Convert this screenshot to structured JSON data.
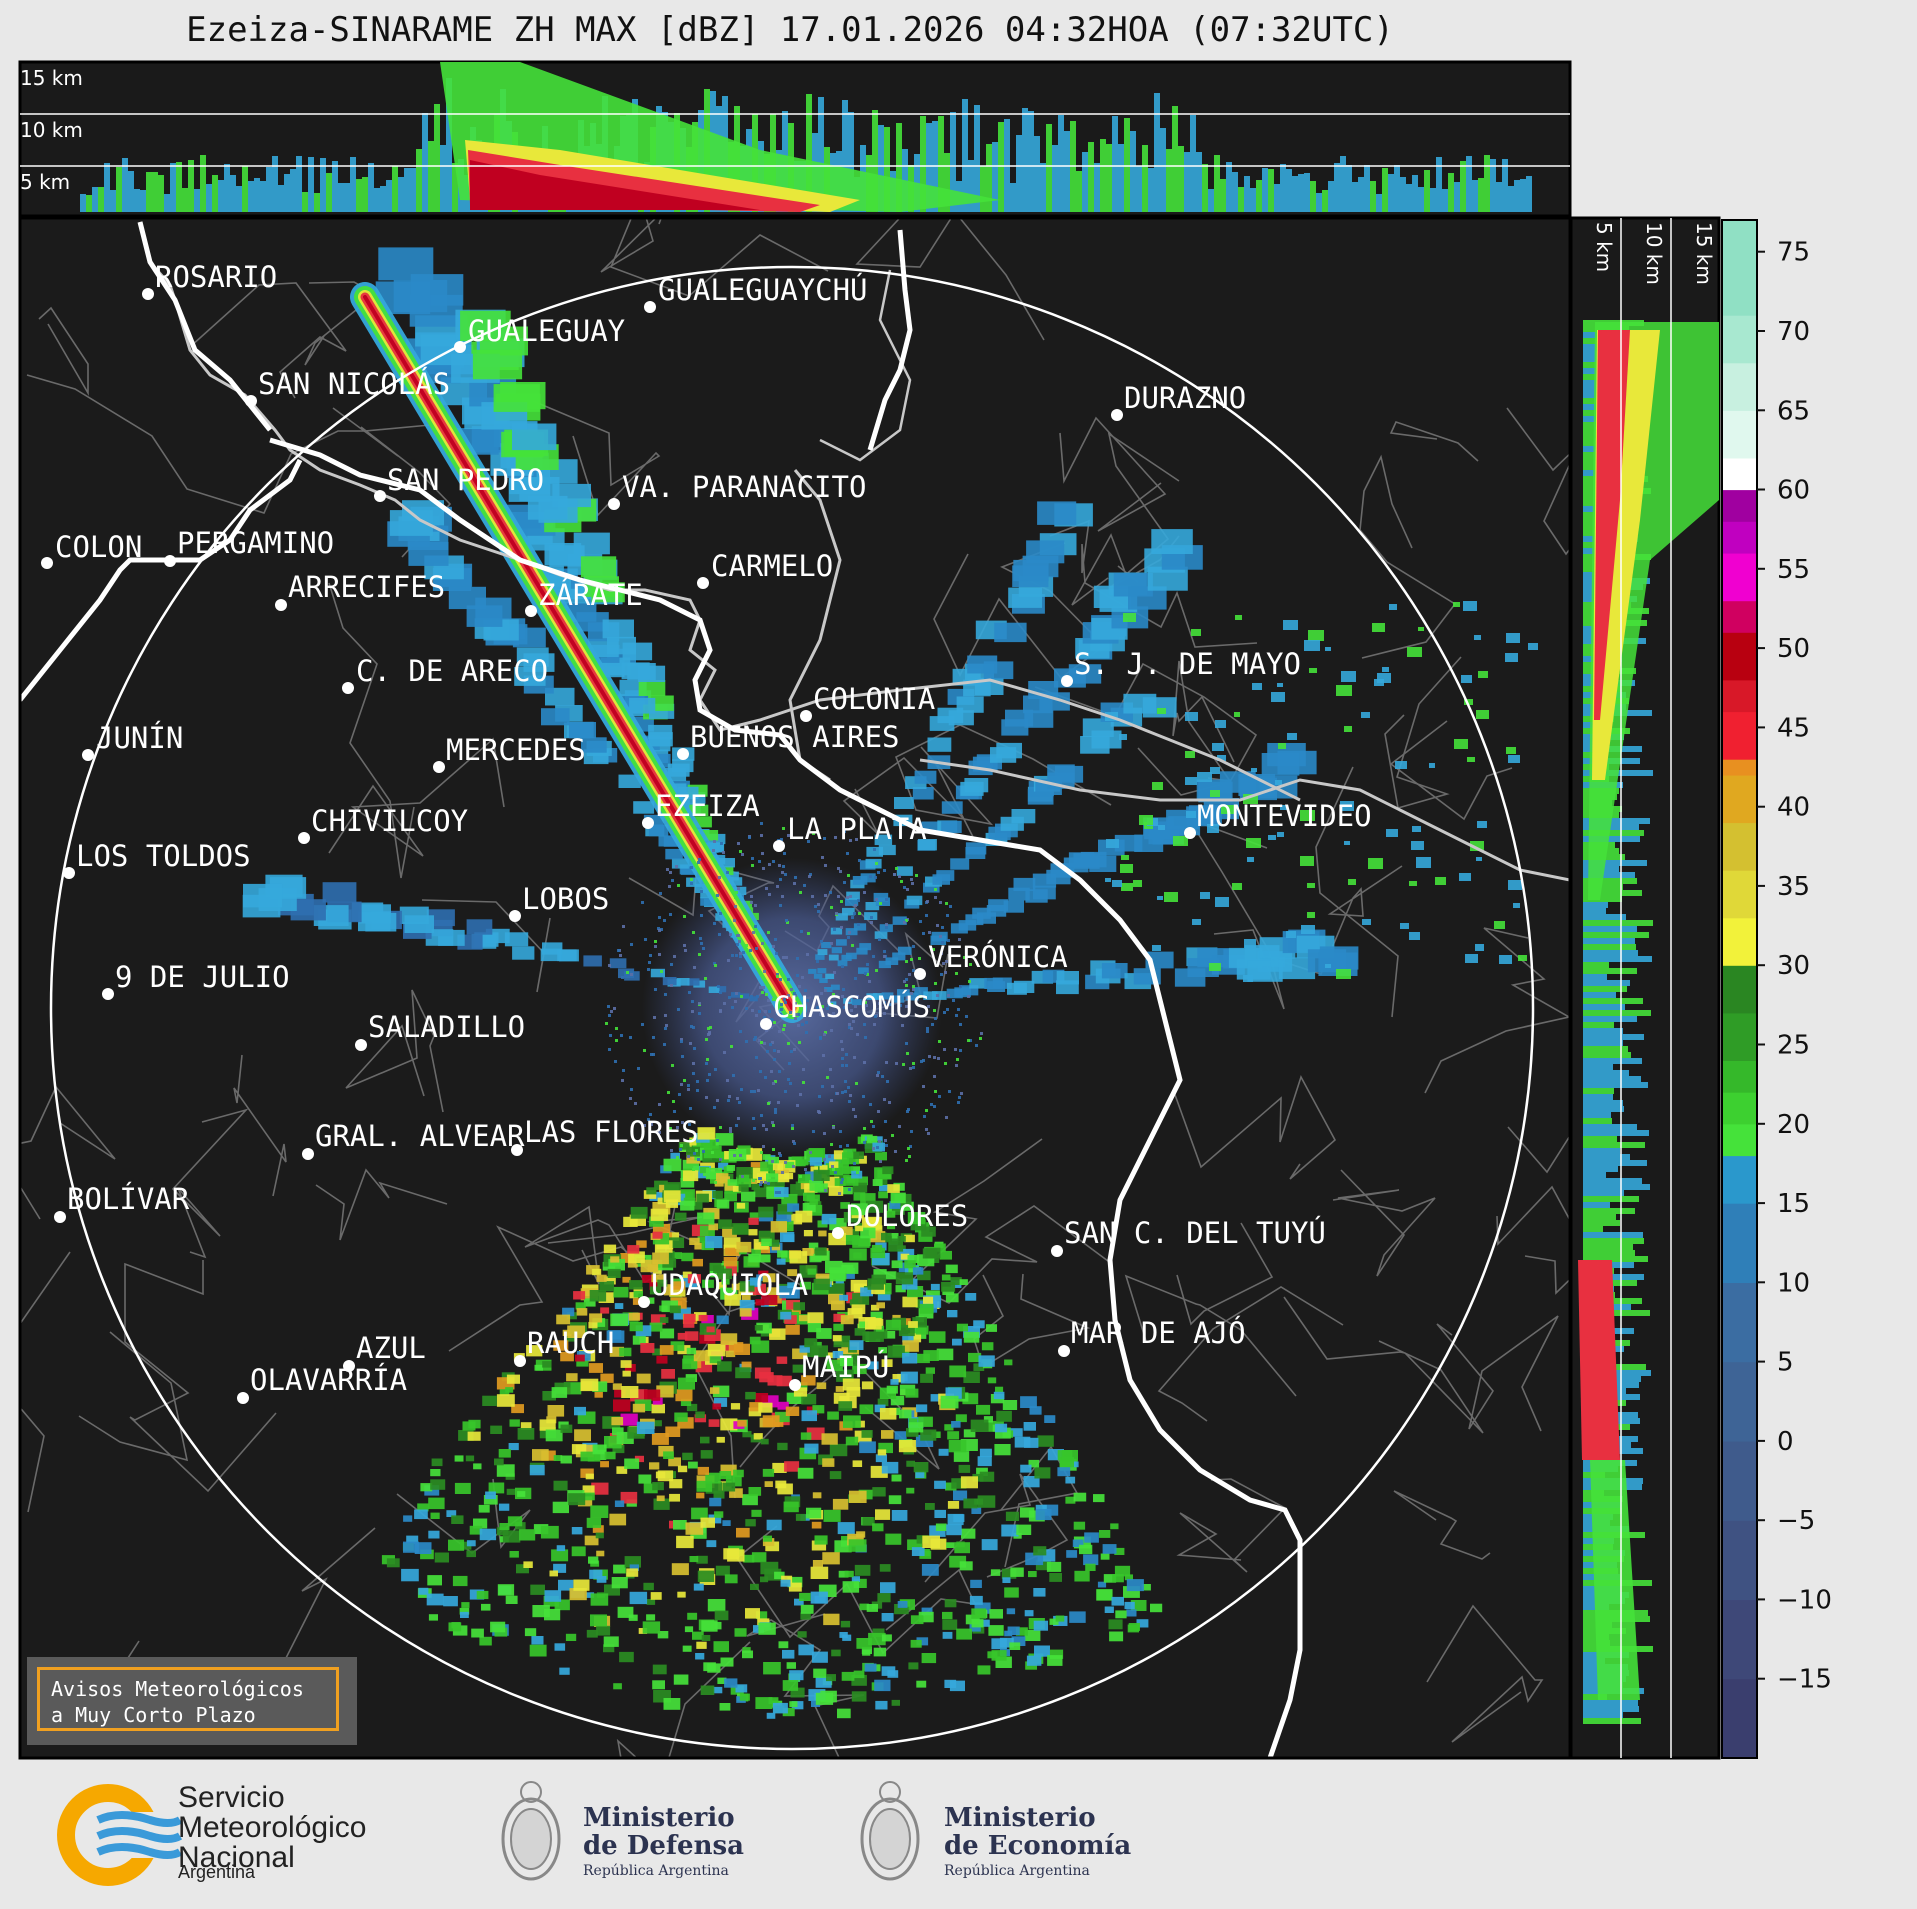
{
  "title": "Ezeiza-SINARAME ZH MAX [dBZ] 17.01.2026 04:32HOA (07:32UTC)",
  "top_panel": {
    "height_labels": [
      "15 km",
      "10 km",
      "5 km"
    ]
  },
  "side_panel": {
    "height_labels": [
      "5 km",
      "10 km",
      "15 km"
    ]
  },
  "colorbar": {
    "unit": "dBZ",
    "tick_labels": [
      "75",
      "70",
      "65",
      "60",
      "55",
      "50",
      "45",
      "40",
      "35",
      "30",
      "25",
      "20",
      "15",
      "10",
      "5",
      "0",
      "−5",
      "−10",
      "−15"
    ]
  },
  "cities": [
    {
      "name": "ROSARIO"
    },
    {
      "name": "GUALEGUAYCHÚ"
    },
    {
      "name": "GUALEGUAY"
    },
    {
      "name": "SAN NICOLÁS"
    },
    {
      "name": "DURAZNO"
    },
    {
      "name": "SAN PEDRO"
    },
    {
      "name": "VA. PARANACITO"
    },
    {
      "name": "COLON"
    },
    {
      "name": "PERGAMINO"
    },
    {
      "name": "CARMELO"
    },
    {
      "name": "ARRECIFES"
    },
    {
      "name": "ZÁRATE"
    },
    {
      "name": "S. J. DE MAYO"
    },
    {
      "name": "C. DE ARECO"
    },
    {
      "name": "COLONIA"
    },
    {
      "name": "JUNÍN"
    },
    {
      "name": "BUENOS AIRES"
    },
    {
      "name": "MERCEDES"
    },
    {
      "name": "MONTEVIDEO"
    },
    {
      "name": "EZEIZA"
    },
    {
      "name": "CHIVILCOY"
    },
    {
      "name": "LA PLATA"
    },
    {
      "name": "LOS TOLDOS"
    },
    {
      "name": "LOBOS"
    },
    {
      "name": "VERÓNICA"
    },
    {
      "name": "9 DE JULIO"
    },
    {
      "name": "CHASCOMÚS"
    },
    {
      "name": "SALADILLO"
    },
    {
      "name": "GRAL. ALVEAR"
    },
    {
      "name": "LAS FLORES"
    },
    {
      "name": "BOLÍVAR"
    },
    {
      "name": "DOLORES"
    },
    {
      "name": "SAN C. DEL TUYÚ"
    },
    {
      "name": "UDAQUIOLA"
    },
    {
      "name": "MAR DE AJÓ"
    },
    {
      "name": "AZUL"
    },
    {
      "name": "RAUCH"
    },
    {
      "name": "OLAVARRÍA"
    },
    {
      "name": "MAIPÚ"
    }
  ],
  "warning_box": {
    "line1": "Avisos Meteorológicos",
    "line2": "a Muy Corto Plazo",
    "border_color": "#f0a020"
  },
  "logos": {
    "smn": {
      "line1": "Servicio",
      "line2": "Meteorológico",
      "line3": "Nacional",
      "sub": "Argentina"
    },
    "defensa": {
      "line1": "Ministerio",
      "line2": "de Defensa",
      "sub": "República Argentina"
    },
    "economia": {
      "line1": "Ministerio",
      "line2": "de Economía",
      "sub": "República Argentina"
    }
  }
}
